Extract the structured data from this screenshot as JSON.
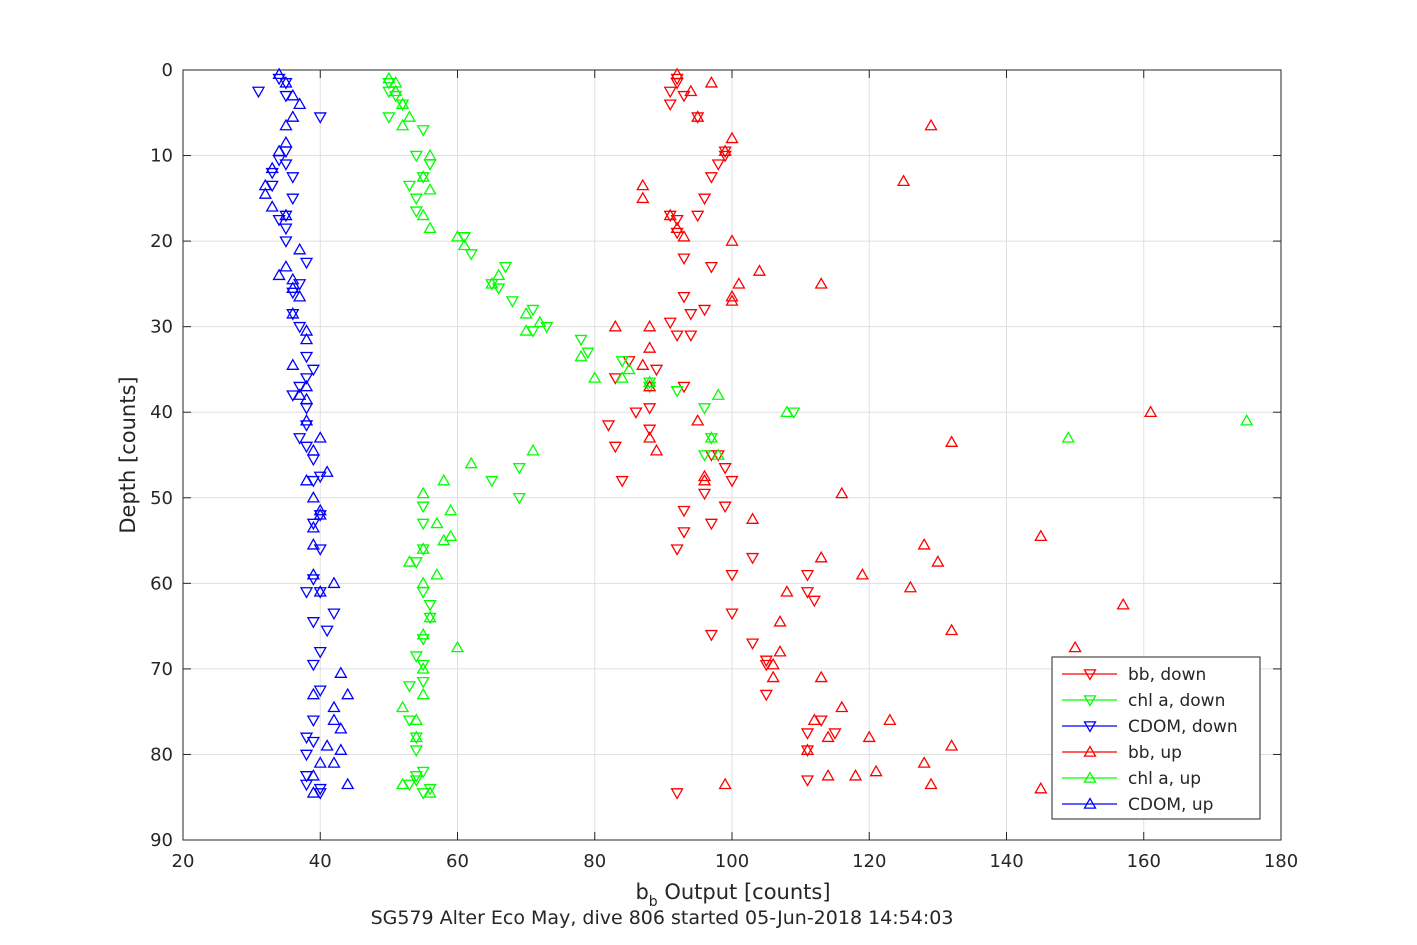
{
  "figure": {
    "title": "SG579 Alter Eco May, dive 806 started 05-Jun-2018 14:54:03"
  },
  "chart_data": {
    "type": "scatter",
    "title": "SG579 Alter Eco May, dive 806 started 05-Jun-2018 14:54:03",
    "xlabel_main": "b",
    "xlabel_sub": "b",
    "xlabel_rest": " Output [counts]",
    "ylabel": "Depth [counts]",
    "xlim": [
      20,
      180
    ],
    "ylim": [
      0,
      90
    ],
    "y_reversed": true,
    "grid": true,
    "legend_position": "bottom-right",
    "xticks": [
      20,
      40,
      60,
      80,
      100,
      120,
      140,
      160,
      180
    ],
    "yticks": [
      0,
      10,
      20,
      30,
      40,
      50,
      60,
      70,
      80,
      90
    ],
    "series": [
      {
        "name": "bb, down",
        "color": "#ff0000",
        "marker": "down",
        "x": [
          92,
          92,
          91,
          91,
          93,
          95,
          99,
          99,
          98,
          97,
          96,
          95,
          91,
          92,
          92,
          93,
          97,
          93,
          96,
          94,
          91,
          92,
          94,
          89,
          85,
          83,
          93,
          88,
          86,
          82,
          88,
          83,
          97,
          98,
          99,
          100,
          84,
          96,
          93,
          99,
          97,
          93,
          92,
          103,
          100,
          111,
          111,
          112,
          100,
          97,
          103,
          105,
          105,
          105,
          113,
          111,
          115,
          111,
          111,
          92
        ],
        "y": [
          1,
          1.5,
          2.5,
          4,
          3,
          5.5,
          9.5,
          10,
          11,
          12.5,
          15,
          17,
          17,
          17.5,
          19,
          22,
          23,
          26.5,
          28,
          28.5,
          29.5,
          31,
          31,
          35,
          34,
          36,
          37,
          39.5,
          40,
          41.5,
          42,
          44,
          45,
          45,
          46.5,
          48,
          48,
          49.5,
          51.5,
          51,
          53,
          54,
          56,
          57,
          59,
          59,
          61,
          62,
          63.5,
          66,
          67,
          69.5,
          69,
          73,
          76,
          77.5,
          77.5,
          79.5,
          83,
          84.5
        ]
      },
      {
        "name": "chl a, down",
        "color": "#00ff00",
        "marker": "down",
        "x": [
          50,
          50,
          51,
          52,
          50,
          55,
          54,
          56,
          55,
          53,
          54,
          54,
          61,
          62,
          67,
          65,
          66,
          68,
          71,
          73,
          71,
          78,
          79,
          84,
          88,
          88,
          92,
          96,
          109,
          97,
          96,
          69,
          65,
          69,
          55,
          55,
          55,
          54,
          55,
          56,
          56,
          55,
          54,
          55,
          55,
          53,
          53,
          54,
          54,
          55,
          54,
          54,
          53,
          56,
          55
        ],
        "y": [
          1.5,
          2.5,
          3,
          4,
          5.5,
          7,
          10,
          11,
          12.5,
          13.5,
          15,
          16.5,
          19.5,
          21.5,
          23,
          25,
          25.5,
          27,
          28,
          30,
          30.5,
          31.5,
          33,
          34,
          36.5,
          37,
          37.5,
          39.5,
          40,
          43,
          45,
          46.5,
          48,
          50,
          51,
          53,
          56,
          57.5,
          61,
          62.5,
          64,
          66.5,
          68.5,
          69.5,
          71.5,
          72,
          76,
          78,
          79.5,
          82,
          82.5,
          83,
          83.5,
          84,
          84.5
        ]
      },
      {
        "name": "CDOM, down",
        "color": "#0000ff",
        "marker": "down",
        "x": [
          34,
          35,
          31,
          35,
          40,
          35,
          34,
          35,
          36,
          33,
          33,
          36,
          35,
          34,
          35,
          35,
          38,
          37,
          36,
          36,
          37,
          38,
          39,
          38,
          37,
          36,
          38,
          38,
          37,
          38,
          39,
          40,
          39,
          40,
          39,
          40,
          39,
          38,
          40,
          42,
          39,
          41,
          40,
          39,
          40,
          39,
          38,
          39,
          38,
          38,
          38,
          40,
          40
        ],
        "y": [
          1,
          1.5,
          2.5,
          3,
          5.5,
          9.5,
          10.5,
          11,
          12.5,
          12,
          13.5,
          15,
          17,
          17.5,
          18.5,
          20,
          22.5,
          25,
          26,
          28.5,
          30,
          33.5,
          35,
          36,
          37,
          38,
          39.5,
          41.5,
          43,
          44,
          45.5,
          47.5,
          48,
          52,
          53,
          56,
          59.5,
          61,
          61,
          63.5,
          64.5,
          65.5,
          68,
          69.5,
          72.5,
          76,
          78,
          78.5,
          80,
          82.5,
          83.5,
          84,
          84.5
        ]
      },
      {
        "name": "bb, up",
        "color": "#ff0000",
        "marker": "up",
        "x": [
          92,
          97,
          94,
          95,
          129,
          100,
          99,
          125,
          87,
          87,
          91,
          92,
          93,
          100,
          100,
          104,
          101,
          113,
          100,
          83,
          88,
          88,
          87,
          88,
          161,
          95,
          88,
          132,
          89,
          96,
          116,
          96,
          103,
          145,
          128,
          130,
          113,
          119,
          126,
          108,
          157,
          107,
          132,
          150,
          107,
          106,
          106,
          113,
          116,
          112,
          123,
          114,
          120,
          132,
          111,
          128,
          121,
          118,
          114,
          129,
          99,
          145
        ],
        "y": [
          0.5,
          1.5,
          2.5,
          5.5,
          6.5,
          8,
          9.5,
          13,
          13.5,
          15,
          17,
          18.5,
          19.5,
          20,
          27,
          23.5,
          25,
          25,
          26.5,
          30,
          30,
          32.5,
          34.5,
          37,
          40,
          41,
          43,
          43.5,
          44.5,
          47.5,
          49.5,
          48,
          52.5,
          54.5,
          55.5,
          57.5,
          57,
          59,
          60.5,
          61,
          62.5,
          64.5,
          65.5,
          67.5,
          68,
          69.5,
          71,
          71,
          74.5,
          76,
          76,
          78,
          78,
          79,
          79.5,
          81,
          82,
          82.5,
          82.5,
          83.5,
          83.5,
          84
        ]
      },
      {
        "name": "chl a, up",
        "color": "#00ff00",
        "marker": "up",
        "x": [
          50,
          51,
          51,
          52,
          53,
          52,
          56,
          55,
          56,
          55,
          56,
          60,
          61,
          66,
          65,
          70,
          72,
          70,
          78,
          80,
          85,
          84,
          88,
          98,
          108,
          175,
          149,
          97,
          98,
          71,
          62,
          58,
          55,
          59,
          57,
          58,
          59,
          55,
          53,
          57,
          55,
          56,
          55,
          60,
          55,
          55,
          52,
          54,
          54,
          52,
          56
        ],
        "y": [
          1,
          1.5,
          2.5,
          4,
          5.5,
          6.5,
          10,
          12.5,
          14,
          17,
          18.5,
          19.5,
          20.5,
          24,
          25,
          28.5,
          29.5,
          30.5,
          33.5,
          36,
          35,
          36,
          36.5,
          38,
          40,
          41,
          43,
          43,
          45,
          44.5,
          46,
          48,
          49.5,
          51.5,
          53,
          55,
          54.5,
          56,
          57.5,
          59,
          60,
          64,
          66,
          67.5,
          70,
          73,
          74.5,
          76,
          78,
          83.5,
          84.5
        ]
      },
      {
        "name": "CDOM, up",
        "color": "#0000ff",
        "marker": "up",
        "x": [
          34,
          35,
          36,
          37,
          36,
          35,
          35,
          34,
          33,
          32,
          32,
          33,
          35,
          37,
          35,
          34,
          36,
          36,
          37,
          36,
          38,
          38,
          36,
          38,
          37,
          38,
          38,
          40,
          39,
          38,
          41,
          39,
          40,
          40,
          39,
          39,
          39,
          42,
          40,
          43,
          44,
          39,
          42,
          42,
          43,
          41,
          43,
          42,
          40,
          39,
          44,
          39
        ],
        "y": [
          0.5,
          1.5,
          3,
          4,
          5.5,
          6.5,
          8.5,
          9.5,
          11.5,
          13.5,
          14.5,
          16,
          17,
          21,
          23,
          24,
          24.5,
          25.5,
          26.5,
          28.5,
          30.5,
          31.5,
          34.5,
          37,
          38,
          38.5,
          41,
          43,
          44.5,
          48,
          47,
          50,
          52,
          51.5,
          53.5,
          55.5,
          59,
          60,
          61,
          70.5,
          73,
          73,
          74.5,
          76,
          77,
          79,
          79.5,
          81,
          81,
          82.5,
          83.5,
          84.5
        ]
      }
    ]
  }
}
